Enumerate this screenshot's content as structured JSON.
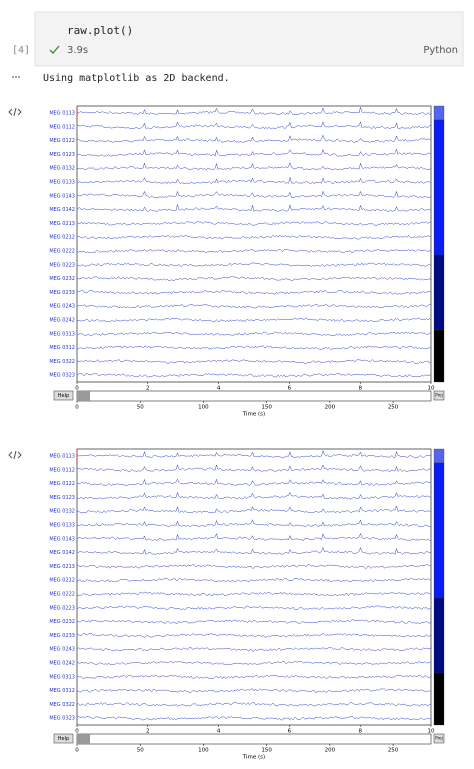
{
  "cell": {
    "prompt": "[4]",
    "code": "raw.plot()",
    "duration": "3.9s",
    "language": "Python"
  },
  "output": {
    "text": "Using matplotlib as 2D backend."
  },
  "figures": [
    {
      "channels": [
        "MEG 0113",
        "MEG 0112",
        "MEG 0122",
        "MEG 0123",
        "MEG 0132",
        "MEG 0133",
        "MEG 0143",
        "MEG 0142",
        "MEG 0213",
        "MEG 0212",
        "MEG 0222",
        "MEG 0223",
        "MEG 0232",
        "MEG 0233",
        "MEG 0243",
        "MEG 0242",
        "MEG 0313",
        "MEG 0312",
        "MEG 0322",
        "MEG 0323"
      ],
      "xlim": [
        0,
        10
      ],
      "xticks": [
        0,
        2,
        4,
        6,
        8,
        10
      ],
      "scroll_xlim": [
        0,
        280
      ],
      "scroll_xticks": [
        0,
        50,
        100,
        150,
        200,
        250
      ],
      "xlabel": "Time (s)",
      "help": "Help",
      "proj": "Proj"
    },
    {
      "channels": [
        "MEG 0113",
        "MEG 0112",
        "MEG 0122",
        "MEG 0123",
        "MEG 0132",
        "MEG 0133",
        "MEG 0143",
        "MEG 0142",
        "MEG 0213",
        "MEG 0212",
        "MEG 0222",
        "MEG 0223",
        "MEG 0232",
        "MEG 0233",
        "MEG 0243",
        "MEG 0242",
        "MEG 0313",
        "MEG 0312",
        "MEG 0322",
        "MEG 0323"
      ],
      "xlim": [
        0,
        10
      ],
      "xticks": [
        0,
        2,
        4,
        6,
        8,
        10
      ],
      "scroll_xlim": [
        0,
        280
      ],
      "scroll_xticks": [
        0,
        50,
        100,
        150,
        200,
        250
      ],
      "xlabel": "Time (s)",
      "help": "Help",
      "proj": "Proj"
    }
  ]
}
